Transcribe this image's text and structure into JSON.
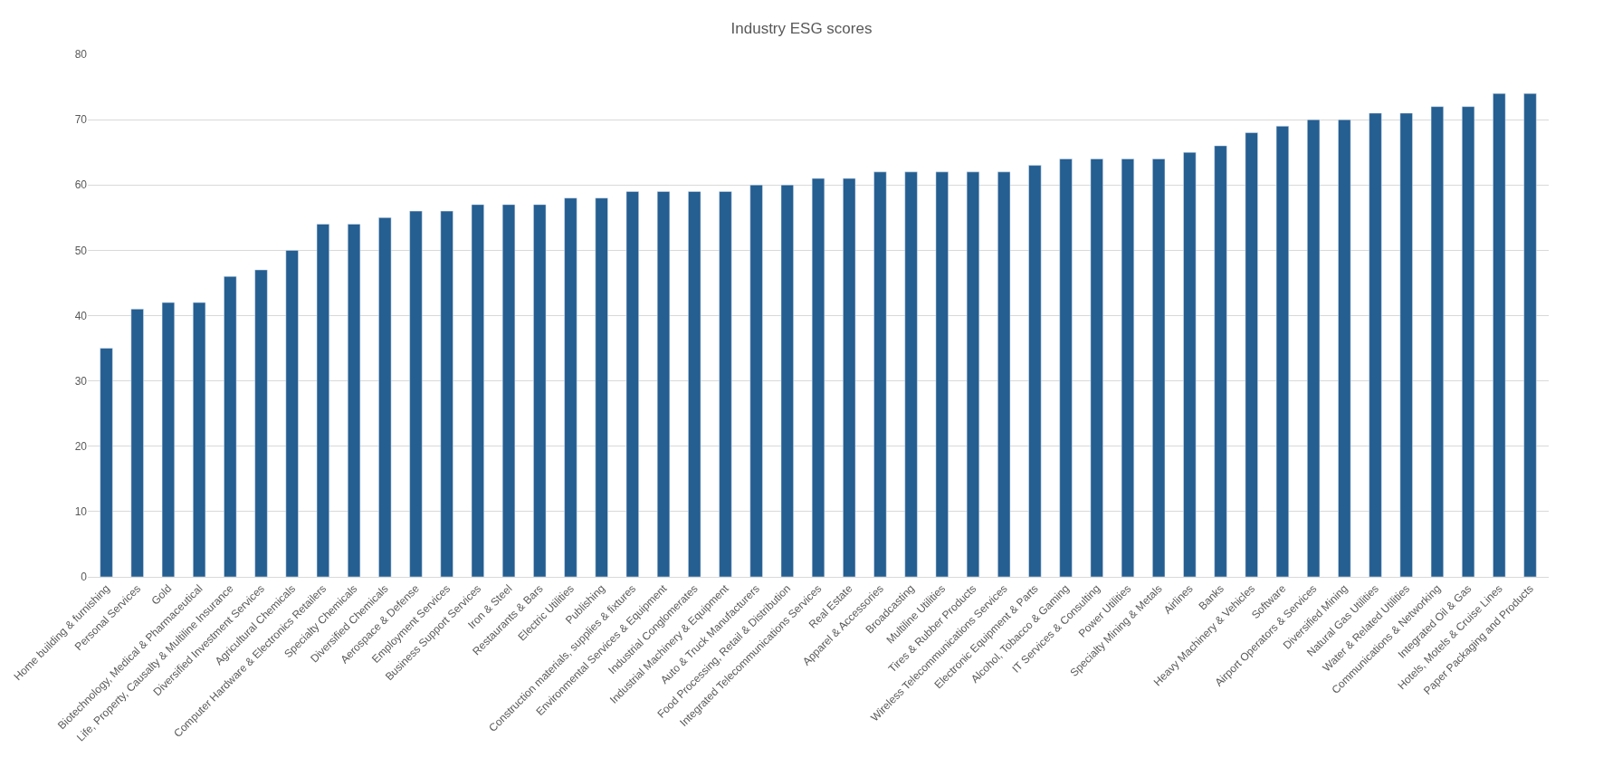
{
  "chart_data": {
    "type": "bar",
    "title": "Industry ESG scores",
    "categories": [
      "Home building & furnishing",
      "Personal Services",
      "Gold",
      "Biotechnology, Medical & Pharmaceutical",
      "Life, Property, Causalty & Multiline Insurance",
      "Diversified Investment Services",
      "Agricultural Chemicals",
      "Computer Hardware & Electronics Retailers",
      "Specialty Chemicals",
      "Diversified Chemicals",
      "Aerospace & Defense",
      "Employment Services",
      "Business Support Services",
      "Iron & Steel",
      "Restaurants & Bars",
      "Electric Utilities",
      "Publishing",
      "Construction materials, supplies & fixtures",
      "Environmental Services & Equipment",
      "Industrial Conglomerates",
      "Industrial Machinery & Equipment",
      "Auto & Truck Manufacturers",
      "Food Processing, Retail & Distribution",
      "Integrated Telecommunications Services",
      "Real Estate",
      "Apparel & Accessories",
      "Broadcasting",
      "Multiline Utilities",
      "Tires & Rubber Products",
      "Wireless Telecommunications Services",
      "Electronic Equipment & Parts",
      "Alcohol, Tobacco & Gaming",
      "IT Services & Consulting",
      "Power Utilities",
      "Specialty Mining & Metals",
      "Airlines",
      "Banks",
      "Heavy Machinery & Vehicles",
      "Software",
      "Airport Operators & Services",
      "Diversified Mining",
      "Natural Gas Utilities",
      "Water & Related Utilities",
      "Communications & Networking",
      "Integrated Oil & Gas",
      "Hotels, Motels & Cruise Lines",
      "Paper Packaging and Products"
    ],
    "values": [
      35,
      41,
      42,
      42,
      46,
      47,
      50,
      54,
      54,
      55,
      56,
      56,
      57,
      57,
      57,
      58,
      58,
      59,
      59,
      59,
      59,
      60,
      60,
      61,
      61,
      62,
      62,
      62,
      62,
      62,
      63,
      64,
      64,
      64,
      64,
      65,
      66,
      68,
      69,
      70,
      70,
      71,
      71,
      72,
      72,
      74,
      74
    ],
    "color": "#255e91",
    "ylim": [
      0,
      80
    ],
    "yticks": [
      0,
      10,
      20,
      30,
      40,
      50,
      60,
      70,
      80
    ],
    "grid": "y"
  }
}
